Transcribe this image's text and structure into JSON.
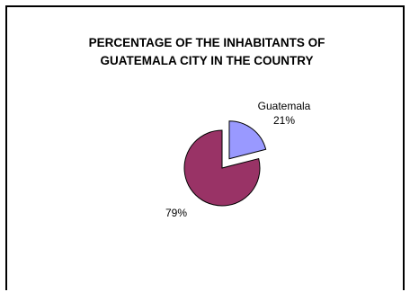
{
  "chart_data": {
    "type": "pie",
    "title_lines": [
      "PERCENTAGE OF THE INHABITANTS OF",
      "GUATEMALA CITY IN THE COUNTRY"
    ],
    "slices": [
      {
        "name": "Guatemala",
        "value": 21,
        "label": "21%",
        "color": "#9999ff",
        "exploded": true
      },
      {
        "name": "",
        "value": 79,
        "label": "79%",
        "color": "#993366",
        "exploded": false
      }
    ]
  }
}
